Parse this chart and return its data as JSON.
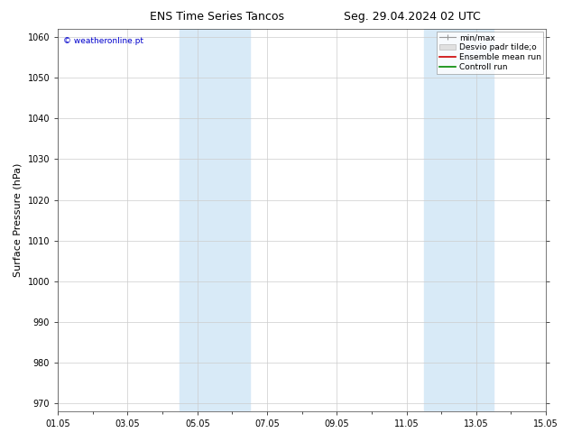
{
  "title_left": "ENS Time Series Tancos",
  "title_right": "Seg. 29.04.2024 02 UTC",
  "ylabel": "Surface Pressure (hPa)",
  "ylim": [
    968,
    1062
  ],
  "yticks": [
    970,
    980,
    990,
    1000,
    1010,
    1020,
    1030,
    1040,
    1050,
    1060
  ],
  "xtick_positions": [
    0,
    2,
    4,
    6,
    8,
    10,
    12,
    14
  ],
  "xtick_labels": [
    "01.05",
    "03.05",
    "05.05",
    "07.05",
    "09.05",
    "11.05",
    "13.05",
    "15.05"
  ],
  "shaded_regions": [
    {
      "x_start": 3.5,
      "x_end": 4.5
    },
    {
      "x_start": 4.5,
      "x_end": 5.5
    },
    {
      "x_start": 10.5,
      "x_end": 11.5
    },
    {
      "x_start": 11.5,
      "x_end": 12.5
    }
  ],
  "watermark": "© weatheronline.pt",
  "bg_color": "#ffffff",
  "plot_bg_color": "#ffffff",
  "shade_color": "#d8eaf7",
  "grid_color": "#cccccc",
  "title_fontsize": 9,
  "tick_fontsize": 7,
  "ylabel_fontsize": 8,
  "watermark_color": "#0000cc",
  "legend_fontsize": 6.5
}
